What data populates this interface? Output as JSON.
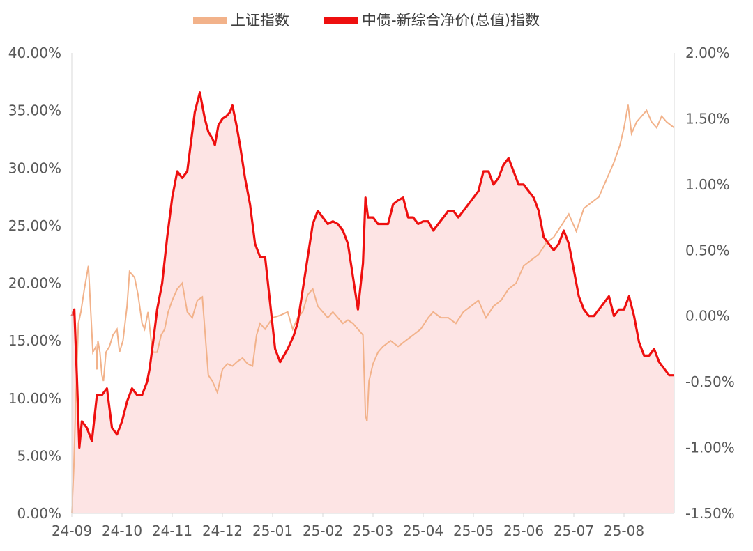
{
  "chart_data": {
    "type": "line",
    "legend_position": "top",
    "grid": false,
    "x_ticks": [
      "24-09",
      "24-10",
      "24-11",
      "24-12",
      "25-01",
      "25-02",
      "25-03",
      "25-04",
      "25-05",
      "25-06",
      "25-07",
      "25-08"
    ],
    "x_range": [
      0,
      12
    ],
    "left_axis": {
      "ticks": [
        "0.00%",
        "5.00%",
        "10.00%",
        "15.00%",
        "20.00%",
        "25.00%",
        "30.00%",
        "35.00%",
        "40.00%"
      ],
      "ylim": [
        0,
        40
      ]
    },
    "right_axis": {
      "ticks": [
        "-1.50%",
        "-1.00%",
        "-0.50%",
        "0.00%",
        "0.50%",
        "1.00%",
        "1.50%",
        "2.00%"
      ],
      "ylim": [
        -1.5,
        2.0
      ]
    },
    "series": [
      {
        "name": "上证指数",
        "axis": "left",
        "color": "#f2b28a",
        "x": [
          0.0,
          0.04,
          0.08,
          0.13,
          0.18,
          0.25,
          0.33,
          0.42,
          0.48,
          0.5,
          0.52,
          0.56,
          0.6,
          0.63,
          0.68,
          0.75,
          0.82,
          0.9,
          0.95,
          1.02,
          1.1,
          1.15,
          1.25,
          1.32,
          1.4,
          1.45,
          1.52,
          1.58,
          1.62,
          1.7,
          1.78,
          1.85,
          1.92,
          2.0,
          2.1,
          2.2,
          2.3,
          2.4,
          2.5,
          2.6,
          2.72,
          2.8,
          2.9,
          3.0,
          3.1,
          3.2,
          3.3,
          3.4,
          3.5,
          3.6,
          3.68,
          3.75,
          3.85,
          4.0,
          4.15,
          4.3,
          4.4,
          4.5,
          4.6,
          4.7,
          4.8,
          4.9,
          5.0,
          5.1,
          5.2,
          5.3,
          5.4,
          5.5,
          5.6,
          5.7,
          5.8,
          5.85,
          5.88,
          5.92,
          6.0,
          6.1,
          6.2,
          6.35,
          6.5,
          6.65,
          6.8,
          6.95,
          7.1,
          7.2,
          7.35,
          7.5,
          7.65,
          7.8,
          7.95,
          8.1,
          8.25,
          8.4,
          8.55,
          8.7,
          8.85,
          9.0,
          9.15,
          9.3,
          9.45,
          9.6,
          9.75,
          9.9,
          10.05,
          10.2,
          10.35,
          10.5,
          10.65,
          10.8,
          10.92,
          11.0,
          11.08,
          11.15,
          11.25,
          11.35,
          11.45,
          11.55,
          11.65,
          11.75,
          11.85,
          12.0
        ],
        "y": [
          0.0,
          4.0,
          10.0,
          16.5,
          17.5,
          19.5,
          21.5,
          14.0,
          14.5,
          12.5,
          15.0,
          14.0,
          12.0,
          11.5,
          14.0,
          14.5,
          15.5,
          16.0,
          14.0,
          15.0,
          18.0,
          21.0,
          20.5,
          19.0,
          16.5,
          16.0,
          17.5,
          15.0,
          14.0,
          14.0,
          15.5,
          16.0,
          17.5,
          18.5,
          19.5,
          20.0,
          17.5,
          17.0,
          18.5,
          18.8,
          12.0,
          11.5,
          10.5,
          12.5,
          13.0,
          12.8,
          13.2,
          13.5,
          13.0,
          12.8,
          15.5,
          16.5,
          16.0,
          17.0,
          17.2,
          17.5,
          16.0,
          17.0,
          17.5,
          19.0,
          19.5,
          18.0,
          17.5,
          17.0,
          17.5,
          17.0,
          16.5,
          16.8,
          16.5,
          16.0,
          15.5,
          8.5,
          8.0,
          11.5,
          13.0,
          14.0,
          14.5,
          15.0,
          14.5,
          15.0,
          15.5,
          16.0,
          17.0,
          17.5,
          17.0,
          17.0,
          16.5,
          17.5,
          18.0,
          18.5,
          17.0,
          18.0,
          18.5,
          19.5,
          20.0,
          21.5,
          22.0,
          22.5,
          23.5,
          24.0,
          25.0,
          26.0,
          24.5,
          26.5,
          27.0,
          27.5,
          29.0,
          30.5,
          32.0,
          33.5,
          35.5,
          33.0,
          34.0,
          34.5,
          35.0,
          34.0,
          33.5,
          34.5,
          34.0,
          33.5
        ]
      },
      {
        "name": "中债-新综合净价(总值)指数",
        "axis": "right",
        "color": "#ee0f0f",
        "fill": "#fde4e4",
        "x": [
          0.0,
          0.05,
          0.1,
          0.15,
          0.2,
          0.3,
          0.4,
          0.5,
          0.6,
          0.7,
          0.8,
          0.9,
          1.0,
          1.1,
          1.2,
          1.3,
          1.4,
          1.5,
          1.55,
          1.62,
          1.7,
          1.8,
          1.9,
          2.0,
          2.1,
          2.2,
          2.3,
          2.45,
          2.55,
          2.65,
          2.72,
          2.8,
          2.85,
          2.92,
          3.0,
          3.08,
          3.15,
          3.2,
          3.28,
          3.35,
          3.45,
          3.55,
          3.65,
          3.75,
          3.85,
          3.95,
          4.05,
          4.15,
          4.3,
          4.42,
          4.5,
          4.6,
          4.7,
          4.8,
          4.9,
          5.0,
          5.1,
          5.2,
          5.3,
          5.4,
          5.5,
          5.6,
          5.7,
          5.8,
          5.85,
          5.9,
          6.0,
          6.1,
          6.2,
          6.3,
          6.4,
          6.5,
          6.6,
          6.7,
          6.8,
          6.9,
          7.0,
          7.1,
          7.2,
          7.3,
          7.4,
          7.5,
          7.6,
          7.7,
          7.8,
          7.9,
          8.0,
          8.1,
          8.2,
          8.3,
          8.4,
          8.5,
          8.6,
          8.7,
          8.8,
          8.9,
          9.0,
          9.1,
          9.2,
          9.3,
          9.4,
          9.5,
          9.6,
          9.7,
          9.8,
          9.9,
          10.0,
          10.1,
          10.2,
          10.3,
          10.4,
          10.5,
          10.6,
          10.7,
          10.8,
          10.9,
          11.0,
          11.1,
          11.2,
          11.3,
          11.4,
          11.5,
          11.6,
          11.7,
          11.8,
          11.9,
          12.0
        ],
        "y": [
          0.0,
          0.05,
          -0.45,
          -1.0,
          -0.8,
          -0.85,
          -0.95,
          -0.6,
          -0.6,
          -0.55,
          -0.85,
          -0.9,
          -0.8,
          -0.65,
          -0.55,
          -0.6,
          -0.6,
          -0.5,
          -0.4,
          -0.2,
          0.05,
          0.25,
          0.6,
          0.9,
          1.1,
          1.05,
          1.1,
          1.55,
          1.7,
          1.5,
          1.4,
          1.35,
          1.3,
          1.45,
          1.5,
          1.52,
          1.55,
          1.6,
          1.45,
          1.3,
          1.05,
          0.85,
          0.55,
          0.45,
          0.45,
          0.1,
          -0.25,
          -0.35,
          -0.25,
          -0.15,
          -0.05,
          0.2,
          0.45,
          0.7,
          0.8,
          0.75,
          0.7,
          0.72,
          0.7,
          0.65,
          0.55,
          0.3,
          0.05,
          0.4,
          0.9,
          0.75,
          0.75,
          0.7,
          0.7,
          0.7,
          0.85,
          0.88,
          0.9,
          0.75,
          0.75,
          0.7,
          0.72,
          0.72,
          0.65,
          0.7,
          0.75,
          0.8,
          0.8,
          0.75,
          0.8,
          0.85,
          0.9,
          0.95,
          1.1,
          1.1,
          1.0,
          1.05,
          1.15,
          1.2,
          1.1,
          1.0,
          1.0,
          0.95,
          0.9,
          0.8,
          0.6,
          0.55,
          0.5,
          0.55,
          0.65,
          0.55,
          0.35,
          0.15,
          0.05,
          0.0,
          0.0,
          0.05,
          0.1,
          0.15,
          0.0,
          0.05,
          0.05,
          0.15,
          0.0,
          -0.2,
          -0.3,
          -0.3,
          -0.25,
          -0.35,
          -0.4,
          -0.45,
          -0.45
        ]
      }
    ]
  }
}
